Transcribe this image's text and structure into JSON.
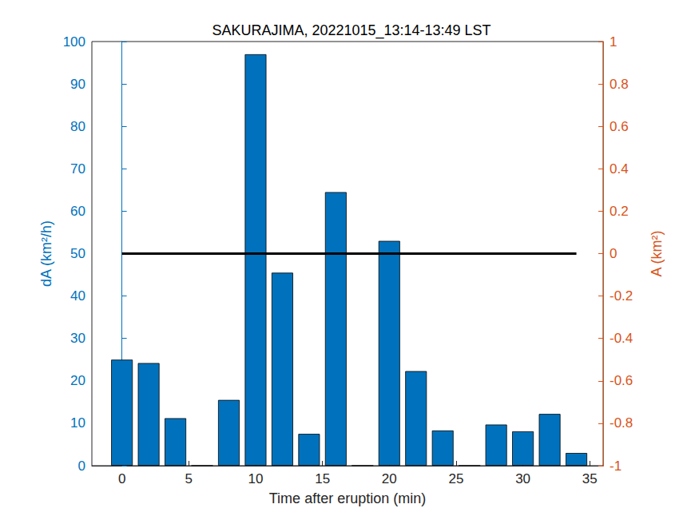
{
  "chart_data": {
    "type": "bar",
    "title": "SAKURAJIMA, 20221015_13:14-13:49 LST",
    "x_label": "Time after eruption (min)",
    "y_label": "dA (km²/h)",
    "y2_label": "A (km²)",
    "xlim": [
      -2.25,
      36
    ],
    "xticks": [
      0,
      5,
      10,
      15,
      20,
      25,
      30,
      35
    ],
    "ylim": [
      0,
      100
    ],
    "yticks": [
      0,
      10,
      20,
      30,
      40,
      50,
      60,
      70,
      80,
      90,
      100
    ],
    "y2lim": [
      -1,
      1
    ],
    "y2ticks": [
      -1,
      -0.8,
      -0.6,
      -0.4,
      -0.2,
      0,
      0.2,
      0.4,
      0.6,
      0.8,
      1
    ],
    "grid": false,
    "series": [
      {
        "type": "bar",
        "color": "#0072bd",
        "x": [
          0,
          2,
          4,
          6,
          8,
          10,
          12,
          14,
          16,
          18,
          20,
          22,
          24,
          26,
          28,
          30,
          32,
          34
        ],
        "values": [
          25,
          24.2,
          11.2,
          0,
          15.5,
          97,
          45.5,
          7.5,
          64.5,
          0,
          53,
          22.3,
          8.3,
          0,
          9.7,
          8.1,
          12.2,
          3
        ]
      },
      {
        "type": "line",
        "color": "#000000",
        "axis": "y2",
        "x": [
          0,
          34
        ],
        "values": [
          0,
          0
        ]
      }
    ],
    "y_color": "#0072bd",
    "y2_color": "#d95319"
  }
}
